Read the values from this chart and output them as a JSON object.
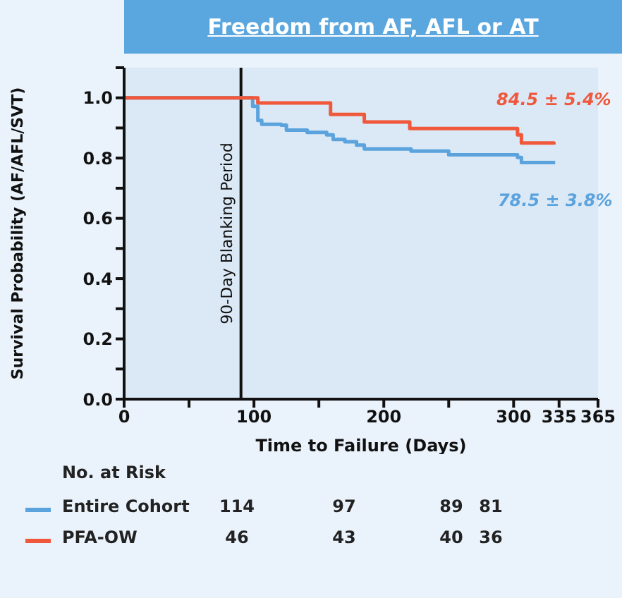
{
  "chart_data": {
    "type": "step",
    "title": "Freedom from AF, AFL or AT",
    "xlabel": "Time to Failure (Days)",
    "ylabel": "Survival Probability (AF/AFL/SVT)",
    "xlim": [
      0,
      365
    ],
    "xticks": [
      0,
      {
        "value": 50,
        "label": null
      },
      100,
      {
        "value": 150,
        "label": null
      },
      200,
      {
        "value": 250,
        "label": null
      },
      300,
      335,
      365
    ],
    "ylim": [
      0,
      1.1
    ],
    "yticks": [
      {
        "value": 0,
        "label": "0.0"
      },
      {
        "value": 0.1,
        "label": null
      },
      {
        "value": 0.2,
        "label": "0.2"
      },
      {
        "value": 0.3,
        "label": null
      },
      {
        "value": 0.4,
        "label": "0.4"
      },
      {
        "value": 0.5,
        "label": null
      },
      {
        "value": 0.6,
        "label": "0.6"
      },
      {
        "value": 0.7,
        "label": null
      },
      {
        "value": 0.8,
        "label": "0.8"
      },
      {
        "value": 0.9,
        "label": null
      },
      {
        "value": 1,
        "label": "1.0"
      },
      {
        "value": 1.1,
        "label": null
      }
    ],
    "series": [
      {
        "name": "Entire Cohort",
        "color": "#5ba3dd",
        "x": [
          0,
          94,
          99,
          103,
          106,
          121,
          125,
          141,
          156,
          161,
          170,
          179,
          185,
          221,
          250,
          303,
          306,
          332
        ],
        "values": [
          1,
          1,
          0.972,
          0.925,
          0.912,
          0.909,
          0.893,
          0.885,
          0.877,
          0.862,
          0.854,
          0.843,
          0.83,
          0.823,
          0.811,
          0.802,
          0.785,
          0.785
        ]
      },
      {
        "name": "PFA-OW",
        "color": "#f0583c",
        "x": [
          0,
          103,
          159,
          185,
          220,
          303,
          306,
          331
        ],
        "values": [
          1,
          0.983,
          0.945,
          0.92,
          0.898,
          0.877,
          0.85,
          0.845
        ]
      }
    ],
    "ref_lines": [
      {
        "axis": "x",
        "value": 90,
        "label": "90-Day Blanking Period",
        "color": "#111111"
      }
    ],
    "legend": "bottom",
    "annotations": [
      {
        "text": "84.5 ± 5.4%",
        "x": 331,
        "y": 0.845
      },
      {
        "text": "78.5 ± 3.8%",
        "x": 332,
        "y": 0.785
      },
      "No. at Risk",
      "114",
      "97",
      "89",
      "81",
      "46",
      "43",
      "40",
      "36"
    ]
  }
}
